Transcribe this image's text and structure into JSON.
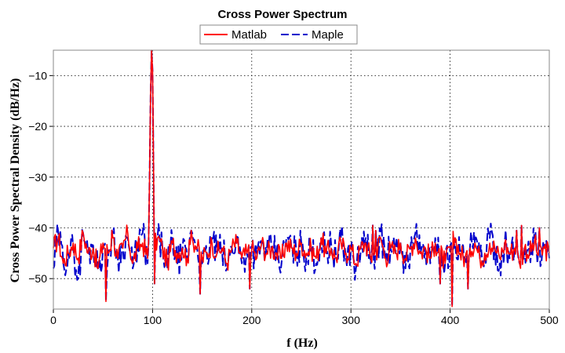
{
  "chart_data": {
    "type": "line",
    "title": "Cross Power Spectrum",
    "xlabel": "f (Hz)",
    "ylabel": "Cross Power Spectral Density (dB/Hz)",
    "xlim": [
      0,
      500
    ],
    "ylim": [
      -56,
      -5
    ],
    "x_ticks": [
      0,
      100,
      200,
      300,
      400,
      500
    ],
    "y_ticks": [
      -50,
      -40,
      -30,
      -20,
      -10
    ],
    "x_tick_labels": [
      "0",
      "100",
      "200",
      "300",
      "400",
      "500"
    ],
    "y_tick_labels": [
      "−50",
      "−40",
      "−30",
      "−20",
      "−10"
    ],
    "grid": true,
    "legend_position": "top-center",
    "sample_step": 5,
    "series": [
      {
        "name": "Matlab",
        "color": "#ff0000",
        "style": "solid",
        "values": [
          -44,
          -42,
          -47,
          -45,
          -43,
          -46,
          -41,
          -45,
          -44,
          -48,
          -43,
          -45,
          -42,
          -46,
          -44,
          -41,
          -47,
          -44,
          -43,
          -46,
          -45,
          -42,
          -44,
          -47,
          -43,
          -45,
          -44,
          -46,
          -42,
          -44,
          -46,
          -45,
          -43,
          -45,
          -44,
          -47,
          -44,
          -43,
          -46,
          -45,
          -44,
          -46,
          -43,
          -45,
          -44,
          -45,
          -46,
          -43,
          -44,
          -45,
          -43,
          -45,
          -44,
          -46,
          -42,
          -45,
          -44,
          -46,
          -43,
          -45,
          -44,
          -47,
          -44,
          -43,
          -46,
          -45,
          -42,
          -46,
          -44,
          -45,
          -43,
          -46,
          -44,
          -42,
          -45,
          -44,
          -46,
          -43,
          -45,
          -47,
          -44,
          -42,
          -45,
          -46,
          -44,
          -43,
          -46,
          -45,
          -43,
          -44,
          -46,
          -43,
          -45,
          -44,
          -47,
          -44,
          -45,
          -43,
          -46,
          -44,
          -45
        ]
      },
      {
        "name": "Maple",
        "color": "#0000cc",
        "style": "dashed",
        "values": [
          -48,
          -41,
          -47,
          -45,
          -44,
          -50,
          -41,
          -45,
          -43,
          -48,
          -44,
          -46,
          -41,
          -46,
          -44,
          -42,
          -48,
          -43,
          -41,
          -47,
          -45,
          -42,
          -44,
          -48,
          -42,
          -47,
          -45,
          -46,
          -41,
          -44,
          -47,
          -46,
          -42,
          -45,
          -44,
          -48,
          -44,
          -42,
          -47,
          -45,
          -44,
          -46,
          -43,
          -45,
          -44,
          -45,
          -47,
          -42,
          -44,
          -45,
          -43,
          -46,
          -44,
          -47,
          -42,
          -45,
          -43,
          -46,
          -42,
          -46,
          -44,
          -48,
          -44,
          -42,
          -47,
          -45,
          -41,
          -46,
          -44,
          -45,
          -43,
          -48,
          -44,
          -41,
          -45,
          -44,
          -47,
          -42,
          -45,
          -47,
          -44,
          -42,
          -45,
          -46,
          -44,
          -43,
          -46,
          -45,
          -42,
          -44,
          -47,
          -43,
          -46,
          -44,
          -47,
          -44,
          -45,
          -42,
          -46,
          -44,
          -46
        ]
      }
    ],
    "peak": {
      "x": [
        96,
        97,
        98,
        99,
        100,
        101,
        102
      ],
      "y": [
        -43,
        -30,
        -14,
        -5,
        -9,
        -28,
        -45
      ]
    },
    "dips": [
      {
        "x": 53,
        "y": -54.5
      },
      {
        "x": 102,
        "y": -51
      },
      {
        "x": 148,
        "y": -53
      },
      {
        "x": 402,
        "y": -55.5
      },
      {
        "x": 418,
        "y": -52
      },
      {
        "x": 198,
        "y": -52
      },
      {
        "x": 390,
        "y": -51
      }
    ],
    "spikes": [
      {
        "x": 322,
        "y": -39.5
      },
      {
        "x": 325,
        "y": -40.5
      },
      {
        "x": 467,
        "y": -40.5
      },
      {
        "x": 472,
        "y": -39.5
      },
      {
        "x": 490,
        "y": -40
      },
      {
        "x": 59,
        "y": -40.5
      },
      {
        "x": 139,
        "y": -40.5
      }
    ]
  }
}
